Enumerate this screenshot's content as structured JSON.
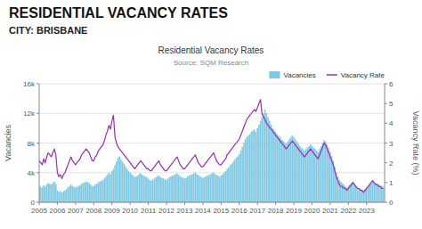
{
  "chart_data": {
    "type": "bar",
    "title": "RESIDENTIAL VACANCY RATES",
    "subtitle": "CITY: BRISBANE",
    "annotations": [
      "Residential Vacancy Rates",
      "Source: SQM Research"
    ],
    "ylabel": "Vacancies",
    "y2label": "Vacancy Rate (%)",
    "xlim": [
      2005,
      2023.99
    ],
    "xticks": [
      2005,
      2006,
      2007,
      2008,
      2009,
      2010,
      2011,
      2012,
      2013,
      2014,
      2015,
      2016,
      2017,
      2018,
      2019,
      2020,
      2021,
      2022,
      2023
    ],
    "ylim": [
      0,
      16000
    ],
    "yticks": [
      0,
      {
        "value": 4000,
        "label": "4k"
      },
      {
        "value": 8000,
        "label": "8k"
      },
      {
        "value": 12000,
        "label": "12k"
      },
      {
        "value": 16000,
        "label": "16k"
      }
    ],
    "y2lim": [
      0,
      6
    ],
    "y2ticks": [
      0,
      1,
      2,
      3,
      4,
      5,
      6
    ],
    "grid": true,
    "legend": "upper right",
    "x": [
      2005,
      2005.083333333333,
      2005.166666666667,
      2005.25,
      2005.333333333333,
      2005.416666666667,
      2005.5,
      2005.583333333333,
      2005.666666666667,
      2005.75,
      2005.833333333333,
      2005.916666666667,
      2006,
      2006.083333333333,
      2006.166666666667,
      2006.25,
      2006.333333333333,
      2006.416666666667,
      2006.5,
      2006.583333333333,
      2006.666666666667,
      2006.75,
      2006.833333333333,
      2006.916666666667,
      2007,
      2007.083333333333,
      2007.166666666667,
      2007.25,
      2007.333333333333,
      2007.416666666667,
      2007.5,
      2007.583333333333,
      2007.666666666667,
      2007.75,
      2007.833333333333,
      2007.916666666667,
      2008,
      2008.083333333333,
      2008.166666666667,
      2008.25,
      2008.333333333333,
      2008.416666666667,
      2008.5,
      2008.583333333333,
      2008.666666666667,
      2008.75,
      2008.833333333333,
      2008.916666666667,
      2009,
      2009.083333333333,
      2009.166666666667,
      2009.25,
      2009.333333333333,
      2009.416666666667,
      2009.5,
      2009.583333333333,
      2009.666666666667,
      2009.75,
      2009.833333333333,
      2009.916666666667,
      2010,
      2010.083333333333,
      2010.166666666667,
      2010.25,
      2010.333333333333,
      2010.416666666667,
      2010.5,
      2010.583333333333,
      2010.666666666667,
      2010.75,
      2010.833333333333,
      2010.916666666667,
      2011,
      2011.083333333333,
      2011.166666666667,
      2011.25,
      2011.333333333333,
      2011.416666666667,
      2011.5,
      2011.583333333333,
      2011.666666666667,
      2011.75,
      2011.833333333333,
      2011.916666666667,
      2012,
      2012.083333333333,
      2012.166666666667,
      2012.25,
      2012.333333333333,
      2012.416666666667,
      2012.5,
      2012.583333333333,
      2012.666666666667,
      2012.75,
      2012.833333333333,
      2012.916666666667,
      2013,
      2013.083333333333,
      2013.166666666667,
      2013.25,
      2013.333333333333,
      2013.416666666667,
      2013.5,
      2013.583333333333,
      2013.666666666667,
      2013.75,
      2013.833333333333,
      2013.916666666667,
      2014,
      2014.083333333333,
      2014.166666666667,
      2014.25,
      2014.333333333333,
      2014.416666666667,
      2014.5,
      2014.583333333333,
      2014.666666666667,
      2014.75,
      2014.833333333333,
      2014.916666666667,
      2015,
      2015.083333333333,
      2015.166666666667,
      2015.25,
      2015.333333333333,
      2015.416666666667,
      2015.5,
      2015.583333333333,
      2015.666666666667,
      2015.75,
      2015.833333333333,
      2015.916666666667,
      2016,
      2016.083333333333,
      2016.166666666667,
      2016.25,
      2016.333333333333,
      2016.416666666667,
      2016.5,
      2016.583333333333,
      2016.666666666667,
      2016.75,
      2016.833333333333,
      2016.916666666667,
      2017,
      2017.083333333333,
      2017.166666666667,
      2017.25,
      2017.333333333333,
      2017.416666666667,
      2017.5,
      2017.583333333333,
      2017.666666666667,
      2017.75,
      2017.833333333333,
      2017.916666666667,
      2018,
      2018.083333333333,
      2018.166666666667,
      2018.25,
      2018.333333333333,
      2018.416666666667,
      2018.5,
      2018.583333333333,
      2018.666666666667,
      2018.75,
      2018.833333333333,
      2018.916666666667,
      2019,
      2019.083333333333,
      2019.166666666667,
      2019.25,
      2019.333333333333,
      2019.416666666667,
      2019.5,
      2019.583333333333,
      2019.666666666667,
      2019.75,
      2019.833333333333,
      2019.916666666667,
      2020,
      2020.083333333333,
      2020.166666666667,
      2020.25,
      2020.333333333333,
      2020.416666666667,
      2020.5,
      2020.583333333333,
      2020.666666666667,
      2020.75,
      2020.833333333333,
      2020.916666666667,
      2021,
      2021.083333333333,
      2021.166666666667,
      2021.25,
      2021.333333333333,
      2021.416666666667,
      2021.5,
      2021.583333333333,
      2021.666666666667,
      2021.75,
      2021.833333333333,
      2021.916666666667,
      2022,
      2022.083333333333,
      2022.166666666667,
      2022.25,
      2022.333333333333,
      2022.416666666667,
      2022.5,
      2022.583333333333,
      2022.666666666667,
      2022.75,
      2022.833333333333,
      2022.916666666667,
      2023,
      2023.083333333333,
      2023.166666666667,
      2023.25,
      2023.333333333333,
      2023.416666666667,
      2023.5,
      2023.583333333333,
      2023.666666666667,
      2023.75,
      2023.833333333333,
      2023.916666666667
    ],
    "series": [
      {
        "name": "Vacancies",
        "type": "bar",
        "axis": "y",
        "color": "#7ec8e3",
        "values": [
          2200,
          2100,
          2000,
          2300,
          2100,
          2400,
          2600,
          2500,
          2400,
          2600,
          2800,
          2500,
          1600,
          1400,
          1500,
          1300,
          1500,
          1600,
          1800,
          2000,
          2200,
          2400,
          2200,
          2100,
          2000,
          2100,
          2200,
          2300,
          2500,
          2600,
          2700,
          2800,
          2700,
          2600,
          2400,
          2200,
          2200,
          2400,
          2500,
          2700,
          2800,
          2900,
          3000,
          3200,
          3500,
          3700,
          4000,
          3800,
          4200,
          4500,
          5000,
          5500,
          6000,
          6200,
          5800,
          5500,
          5200,
          4800,
          4500,
          4200,
          4000,
          3800,
          3600,
          3400,
          3500,
          3600,
          3800,
          3900,
          3700,
          3600,
          3500,
          3400,
          3200,
          3000,
          2900,
          3100,
          3200,
          3400,
          3500,
          3600,
          3400,
          3300,
          3200,
          3100,
          3000,
          3200,
          3400,
          3500,
          3600,
          3700,
          3800,
          3900,
          3700,
          3500,
          3400,
          3300,
          3200,
          3300,
          3500,
          3600,
          3700,
          3800,
          3900,
          4000,
          3800,
          3700,
          3500,
          3400,
          3300,
          3400,
          3500,
          3600,
          3700,
          3800,
          3900,
          4000,
          3800,
          3700,
          3600,
          3500,
          3600,
          3800,
          4000,
          4200,
          4500,
          4700,
          5000,
          5200,
          5500,
          5800,
          6000,
          6200,
          6500,
          7000,
          7500,
          8000,
          8500,
          8800,
          9000,
          9200,
          9500,
          9700,
          9800,
          9500,
          10000,
          10500,
          11000,
          11500,
          12000,
          12500,
          12000,
          11500,
          11000,
          10500,
          10000,
          9800,
          9500,
          9200,
          9000,
          8800,
          8500,
          8300,
          8100,
          7900,
          8200,
          8500,
          8800,
          9000,
          8800,
          8500,
          8200,
          7900,
          7600,
          7400,
          7200,
          7000,
          7200,
          7400,
          7600,
          7800,
          7600,
          7400,
          7200,
          7000,
          6800,
          7200,
          7600,
          8000,
          8400,
          8200,
          7800,
          7400,
          6800,
          6200,
          5600,
          4800,
          4000,
          3500,
          3000,
          2800,
          2600,
          2400,
          2200,
          2000,
          2200,
          2400,
          2600,
          2800,
          2500,
          2200,
          2000,
          1900,
          1800,
          1700,
          1600,
          1800,
          2000,
          2200,
          2400,
          2600,
          2800,
          2700,
          2600,
          2500,
          2400,
          2300,
          2200,
          2100
        ]
      },
      {
        "name": "Vacancy Rate",
        "type": "line",
        "axis": "y2",
        "color": "#9b2cb5",
        "values": [
          2.1,
          2.0,
          1.9,
          2.2,
          2.0,
          2.3,
          2.5,
          2.4,
          2.3,
          2.5,
          2.7,
          2.4,
          1.5,
          1.3,
          1.4,
          1.2,
          1.4,
          1.5,
          1.7,
          1.9,
          2.1,
          2.3,
          2.1,
          2.0,
          1.9,
          2.0,
          2.1,
          2.2,
          2.4,
          2.5,
          2.6,
          2.7,
          2.6,
          2.5,
          2.3,
          2.1,
          2.1,
          2.3,
          2.4,
          2.6,
          2.7,
          2.8,
          2.9,
          3.1,
          3.4,
          3.6,
          3.9,
          3.7,
          4.1,
          4.4,
          3.3,
          3.0,
          2.8,
          2.7,
          2.6,
          2.5,
          2.4,
          2.3,
          2.2,
          2.1,
          2.0,
          1.9,
          1.8,
          1.7,
          1.8,
          1.9,
          2.0,
          2.1,
          2.0,
          1.9,
          1.8,
          1.7,
          1.7,
          1.6,
          1.6,
          1.7,
          1.8,
          1.9,
          2.0,
          2.1,
          1.9,
          1.8,
          1.7,
          1.6,
          1.6,
          1.7,
          1.8,
          1.9,
          2.0,
          2.1,
          2.2,
          2.3,
          2.1,
          1.9,
          1.8,
          1.7,
          1.7,
          1.8,
          1.9,
          2.0,
          2.1,
          2.2,
          2.3,
          2.4,
          2.2,
          2.0,
          1.9,
          1.8,
          1.8,
          1.9,
          2.0,
          2.1,
          2.2,
          2.3,
          2.4,
          2.5,
          2.3,
          2.1,
          2.0,
          1.9,
          1.9,
          2.0,
          2.1,
          2.2,
          2.4,
          2.5,
          2.6,
          2.7,
          2.8,
          2.9,
          3.0,
          3.1,
          3.2,
          3.4,
          3.6,
          3.8,
          4.0,
          4.2,
          4.3,
          4.4,
          4.5,
          4.6,
          4.7,
          4.6,
          4.8,
          5.0,
          5.2,
          4.5,
          4.3,
          4.2,
          4.0,
          3.9,
          3.8,
          3.7,
          3.6,
          3.5,
          3.4,
          3.3,
          3.2,
          3.1,
          3.0,
          2.9,
          2.8,
          2.7,
          2.8,
          2.9,
          3.0,
          3.1,
          3.0,
          2.9,
          2.8,
          2.7,
          2.6,
          2.5,
          2.4,
          2.3,
          2.4,
          2.5,
          2.6,
          2.7,
          2.6,
          2.5,
          2.4,
          2.3,
          2.2,
          2.4,
          2.6,
          2.8,
          3.0,
          2.9,
          2.7,
          2.5,
          2.3,
          2.1,
          1.9,
          1.6,
          1.3,
          1.1,
          0.9,
          0.8,
          0.8,
          0.7,
          0.7,
          0.6,
          0.7,
          0.8,
          0.9,
          1.0,
          0.9,
          0.8,
          0.7,
          0.7,
          0.6,
          0.6,
          0.5,
          0.6,
          0.7,
          0.8,
          0.9,
          1.0,
          1.1,
          1.0,
          0.9,
          0.9,
          0.8,
          0.8,
          0.7,
          0.7
        ]
      }
    ]
  }
}
